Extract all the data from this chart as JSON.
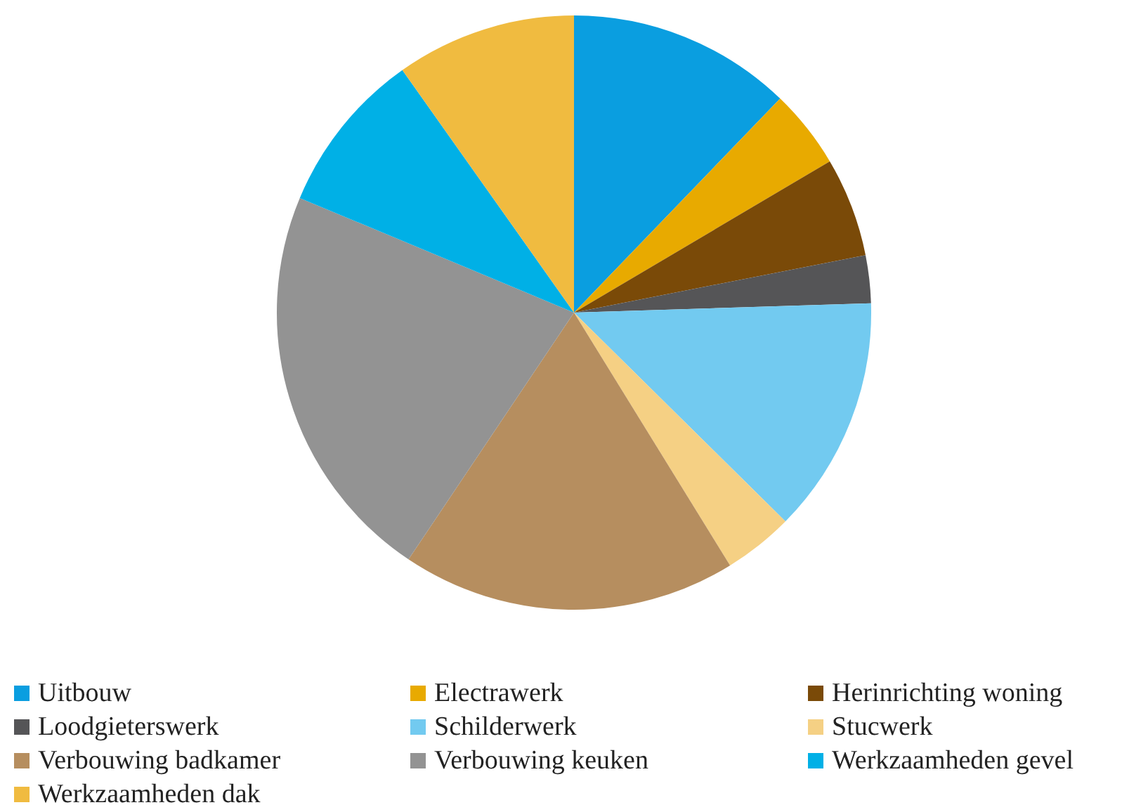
{
  "chart_data": {
    "type": "pie",
    "categories": [
      "Uitbouw",
      "Electrawerk",
      "Herinrichting woning",
      "Loodgieterswerk",
      "Schilderwerk",
      "Stucwerk",
      "Verbouwing badkamer",
      "Verbouwing keuken",
      "Werkzaamheden gevel",
      "Werkzaamheden dak"
    ],
    "values": [
      12.2,
      4.3,
      5.4,
      2.6,
      12.9,
      3.8,
      18.2,
      21.9,
      8.9,
      9.8
    ],
    "colors": [
      "#0a9ee0",
      "#e8aa00",
      "#7a4a08",
      "#555557",
      "#72caf0",
      "#f5d084",
      "#b68e5f",
      "#939393",
      "#00b0e6",
      "#f0bb40"
    ],
    "legend": "bottom"
  }
}
